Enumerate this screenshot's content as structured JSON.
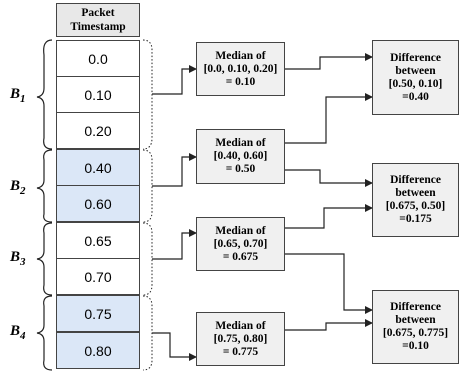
{
  "table": {
    "header_line1": "Packet",
    "header_line2": "Timestamp",
    "timestamps": [
      "0.0",
      "0.10",
      "0.20",
      "0.40",
      "0.60",
      "0.65",
      "0.70",
      "0.75",
      "0.80"
    ]
  },
  "groups": [
    {
      "label": "B",
      "sub": "1"
    },
    {
      "label": "B",
      "sub": "2"
    },
    {
      "label": "B",
      "sub": "3"
    },
    {
      "label": "B",
      "sub": "4"
    }
  ],
  "medians": [
    {
      "line1": "Median of",
      "line2": "[0.0, 0.10, 0.20]",
      "line3": "= 0.10"
    },
    {
      "line1": "Median of",
      "line2": "[0.40, 0.60]",
      "line3": "= 0.50"
    },
    {
      "line1": "Median of",
      "line2": "[0.65, 0.70]",
      "line3": "= 0.675"
    },
    {
      "line1": "Median of",
      "line2": "[0.75, 0.80]",
      "line3": "= 0.775"
    }
  ],
  "differences": [
    {
      "line1": "Difference",
      "line2": "between",
      "line3": "[0.50, 0.10]",
      "line4": "=0.40"
    },
    {
      "line1": "Difference",
      "line2": "between",
      "line3": "[0.675, 0.50]",
      "line4": "=0.175"
    },
    {
      "line1": "Difference",
      "line2": "between",
      "line3": "[0.675, 0.775]",
      "line4": "=0.10"
    }
  ],
  "colors": {
    "blue_cell": "#dbe7f7",
    "box_fill": "#f0f0f0",
    "stroke": "#222222"
  }
}
